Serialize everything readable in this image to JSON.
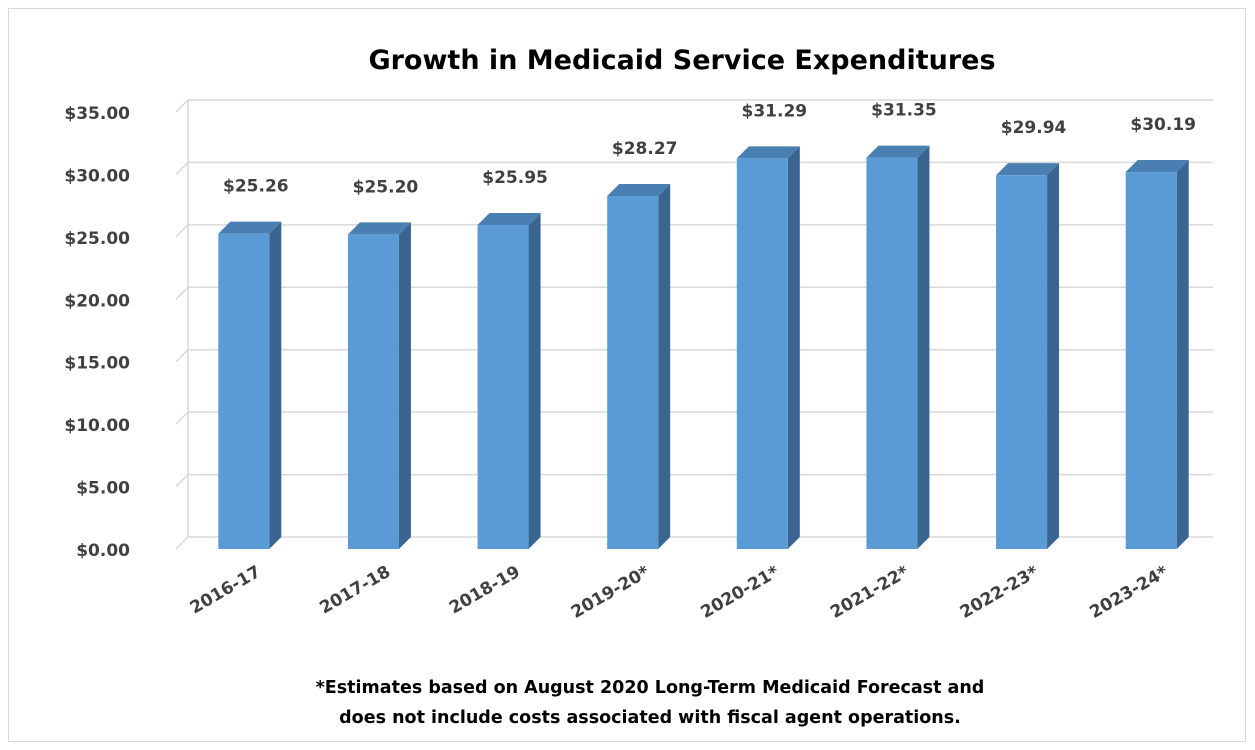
{
  "chart_data": {
    "type": "bar",
    "title": "Growth in Medicaid Service Expenditures",
    "categories": [
      "2016-17",
      "2017-18",
      "2018-19",
      "2019-20*",
      "2020-21*",
      "2021-22*",
      "2022-23*",
      "2023-24*"
    ],
    "values": [
      25.26,
      25.2,
      25.95,
      28.27,
      31.29,
      31.35,
      29.94,
      30.19
    ],
    "value_labels": [
      "$25.26",
      "$25.20",
      "$25.95",
      "$28.27",
      "$31.29",
      "$31.35",
      "$29.94",
      "$30.19"
    ],
    "y_ticks": [
      "$0.00",
      "$5.00",
      "$10.00",
      "$15.00",
      "$20.00",
      "$25.00",
      "$30.00",
      "$35.00"
    ],
    "ylim": [
      0,
      35
    ],
    "grid": true,
    "legend": "none",
    "style": "3d-column",
    "colors": {
      "bar_front": "#5b9bd5",
      "bar_side": "#3a6590",
      "bar_top": "#4a7fb1",
      "grid": "#d9d9d9"
    },
    "footnote": [
      "*Estimates based on August 2020 Long-Term Medicaid Forecast and",
      "does not include costs associated with fiscal agent operations."
    ]
  }
}
